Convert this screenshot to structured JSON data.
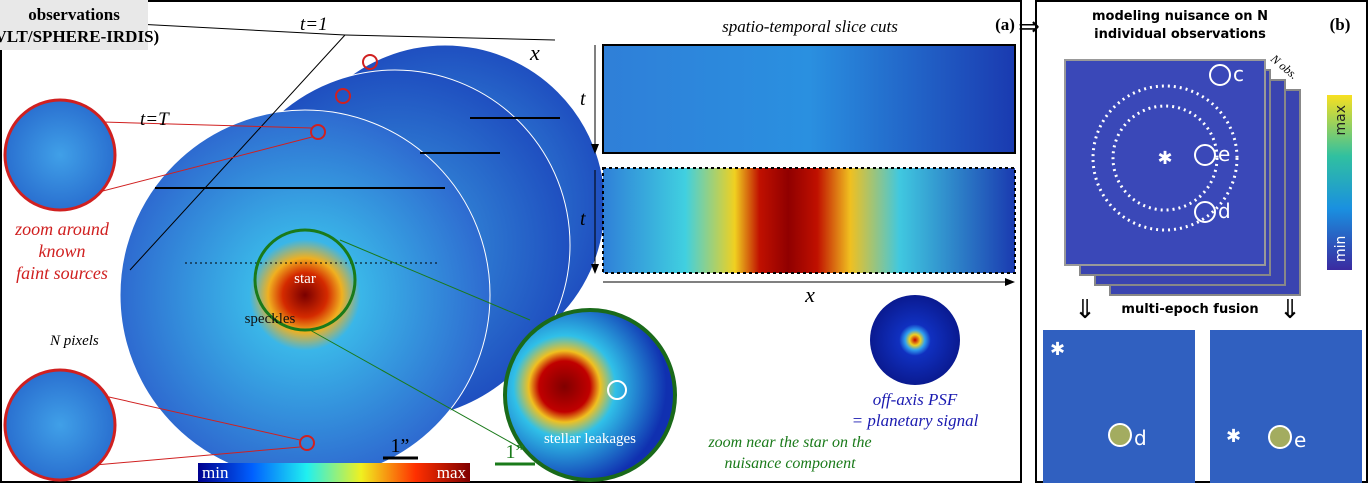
{
  "panel_a": {
    "label": "(a)",
    "observations": {
      "title": "observations",
      "subtitle": "(VLT/SPHERE-IRDIS)"
    },
    "axes": {
      "t_first": "t=1",
      "t_last": "t=T",
      "x": "x"
    },
    "slices": {
      "title": "spatio-temporal slice cuts",
      "t_top": "t",
      "t_bottom": "t",
      "x": "x"
    },
    "annotations": {
      "zoom_faint": [
        "zoom around",
        "known",
        "faint sources"
      ],
      "n_pixels": "N pixels",
      "star": "star",
      "speckles": "speckles",
      "stellar_leakages": "stellar leakages",
      "zoom_star": [
        "zoom near the star on the",
        "nuisance component"
      ],
      "psf": [
        "off-axis PSF",
        "= planetary signal"
      ]
    },
    "scale_bars": [
      "1”",
      "1”"
    ],
    "colorbar": {
      "min": "min",
      "max": "max"
    }
  },
  "panel_b": {
    "label": "(b)",
    "title": [
      "modeling nuisance on N",
      "individual observations"
    ],
    "n_obs": "N obs.",
    "sources": [
      "c",
      "e",
      "d"
    ],
    "colorbar": {
      "max": "max",
      "min": "min"
    },
    "fusion": "multi-epoch fusion",
    "fused_sources": [
      "d",
      "e"
    ]
  }
}
